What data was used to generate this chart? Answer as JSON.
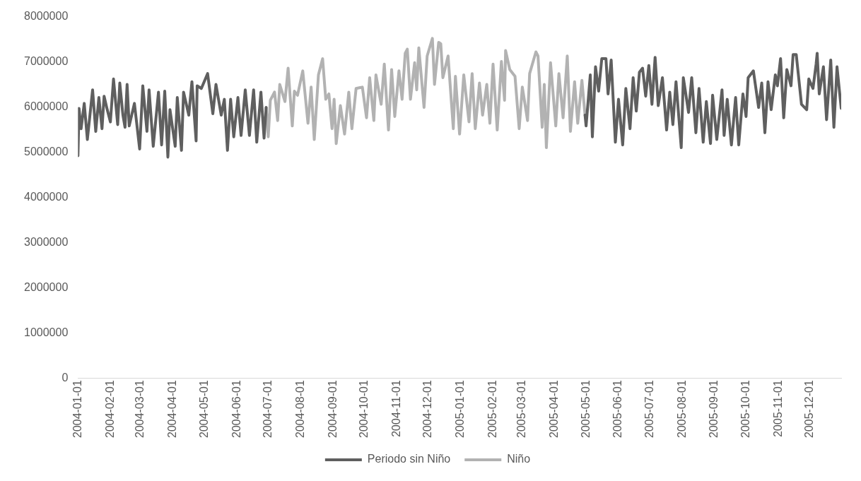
{
  "chart_data": {
    "type": "line",
    "legend": "bottom",
    "grid": false,
    "marker": "none",
    "line_style": "solid",
    "xlim": [
      "2004-01-01",
      "2005-12-31"
    ],
    "xticks": [
      "2004-01-01",
      "2004-02-01",
      "2004-03-01",
      "2004-04-01",
      "2004-05-01",
      "2004-06-01",
      "2004-07-01",
      "2004-08-01",
      "2004-09-01",
      "2004-10-01",
      "2004-11-01",
      "2004-12-01",
      "2005-01-01",
      "2005-02-01",
      "2005-03-01",
      "2005-04-01",
      "2005-05-01",
      "2005-06-01",
      "2005-07-01",
      "2005-08-01",
      "2005-09-01",
      "2005-10-01",
      "2005-11-01",
      "2005-12-01"
    ],
    "ylim": [
      0,
      8000000
    ],
    "yticks": [
      0,
      1000000,
      2000000,
      3000000,
      4000000,
      5000000,
      6000000,
      7000000,
      8000000
    ],
    "series": [
      {
        "name": "Periodo sin Niño",
        "color": "#5f5f5f",
        "x": [
          "2004-01-01",
          "2004-01-02",
          "2004-01-04",
          "2004-01-07",
          "2004-01-10",
          "2004-01-15",
          "2004-01-18",
          "2004-01-21",
          "2004-01-24",
          "2004-01-26",
          "2004-01-29",
          "2004-02-01",
          "2004-02-04",
          "2004-02-08",
          "2004-02-10",
          "2004-02-13",
          "2004-02-15",
          "2004-02-17",
          "2004-02-19",
          "2004-02-24",
          "2004-02-29",
          "2004-03-03",
          "2004-03-07",
          "2004-03-09",
          "2004-03-13",
          "2004-03-18",
          "2004-03-21",
          "2004-03-24",
          "2004-03-27",
          "2004-03-29",
          "2004-04-03",
          "2004-04-05",
          "2004-04-09",
          "2004-04-11",
          "2004-04-16",
          "2004-04-19",
          "2004-04-23",
          "2004-04-24",
          "2004-04-28",
          "2004-05-04",
          "2004-05-09",
          "2004-05-12",
          "2004-05-17",
          "2004-05-20",
          "2004-05-23",
          "2004-05-26",
          "2004-05-29",
          "2004-06-02",
          "2004-06-05",
          "2004-06-09",
          "2004-06-13",
          "2004-06-17",
          "2004-06-20",
          "2004-06-24",
          "2004-06-27",
          "2004-06-29",
          "2004-12-01",
          "2005-04-30",
          "2005-05-01",
          "2005-05-05",
          "2005-05-07",
          "2005-05-10",
          "2005-05-13",
          "2005-05-16",
          "2005-05-20",
          "2005-05-22",
          "2005-05-25",
          "2005-05-29",
          "2005-06-01",
          "2005-06-05",
          "2005-06-08",
          "2005-06-12",
          "2005-06-15",
          "2005-06-18",
          "2005-06-21",
          "2005-06-24",
          "2005-06-27",
          "2005-06-30",
          "2005-07-03",
          "2005-07-06",
          "2005-07-09",
          "2005-07-13",
          "2005-07-17",
          "2005-07-20",
          "2005-07-23",
          "2005-07-26",
          "2005-07-31",
          "2005-08-02",
          "2005-08-07",
          "2005-08-10",
          "2005-08-14",
          "2005-08-17",
          "2005-08-21",
          "2005-08-24",
          "2005-08-28",
          "2005-08-30",
          "2005-09-03",
          "2005-09-08",
          "2005-09-10",
          "2005-09-13",
          "2005-09-17",
          "2005-09-21",
          "2005-09-24",
          "2005-09-28",
          "2005-10-01",
          "2005-10-03",
          "2005-10-08",
          "2005-10-13",
          "2005-10-16",
          "2005-10-19",
          "2005-10-22",
          "2005-10-25",
          "2005-10-29",
          "2005-10-31",
          "2005-11-03",
          "2005-11-06",
          "2005-11-09",
          "2005-11-13",
          "2005-11-15",
          "2005-11-18",
          "2005-11-23",
          "2005-11-28",
          "2005-11-30",
          "2005-12-04",
          "2005-12-07",
          "2005-12-08",
          "2005-12-10",
          "2005-12-14",
          "2005-12-17",
          "2005-12-21",
          "2005-12-24",
          "2005-12-27",
          "2005-12-31"
        ],
        "values": [
          4920000,
          5970000,
          5520000,
          6080000,
          5280000,
          6380000,
          5460000,
          6210000,
          5520000,
          6240000,
          5940000,
          5670000,
          6620000,
          5610000,
          6530000,
          5820000,
          5550000,
          6500000,
          5580000,
          6080000,
          5070000,
          6470000,
          5460000,
          6380000,
          5130000,
          6330000,
          5160000,
          6350000,
          4890000,
          5940000,
          5130000,
          6210000,
          5040000,
          6330000,
          5820000,
          6560000,
          5250000,
          6470000,
          6410000,
          6740000,
          5850000,
          6500000,
          5820000,
          6170000,
          5040000,
          6170000,
          5340000,
          6210000,
          5370000,
          6380000,
          5370000,
          6380000,
          5220000,
          6330000,
          5310000,
          5990000,
          null,
          5820000,
          5580000,
          6710000,
          5340000,
          6890000,
          6350000,
          7070000,
          7070000,
          6290000,
          7040000,
          5220000,
          6170000,
          5160000,
          6410000,
          5520000,
          6650000,
          5910000,
          6770000,
          6860000,
          6240000,
          6920000,
          6060000,
          7100000,
          6030000,
          6650000,
          5490000,
          6330000,
          5610000,
          6560000,
          5100000,
          6650000,
          5880000,
          6650000,
          5430000,
          6410000,
          5220000,
          6120000,
          5190000,
          6260000,
          5280000,
          6380000,
          5370000,
          6170000,
          5160000,
          6210000,
          5160000,
          6290000,
          5790000,
          6650000,
          6800000,
          5990000,
          6530000,
          5430000,
          6560000,
          5940000,
          6710000,
          6470000,
          7070000,
          5760000,
          6830000,
          6470000,
          7160000,
          7160000,
          6060000,
          5940000,
          6620000,
          6410000,
          6950000,
          7190000,
          6290000,
          6890000,
          5720000,
          7040000,
          5550000,
          6890000,
          5970000
        ]
      },
      {
        "name": "Niño",
        "color": "#b2b2b2",
        "x": [
          "2004-06-29",
          "2004-07-01",
          "2004-07-03",
          "2004-07-07",
          "2004-07-10",
          "2004-07-12",
          "2004-07-17",
          "2004-07-20",
          "2004-07-24",
          "2004-07-26",
          "2004-07-29",
          "2004-08-03",
          "2004-08-08",
          "2004-08-11",
          "2004-08-14",
          "2004-08-18",
          "2004-08-22",
          "2004-08-25",
          "2004-08-28",
          "2004-08-31",
          "2004-09-02",
          "2004-09-04",
          "2004-09-08",
          "2004-09-12",
          "2004-09-16",
          "2004-09-19",
          "2004-09-23",
          "2004-09-29",
          "2004-10-03",
          "2004-10-06",
          "2004-10-10",
          "2004-10-12",
          "2004-10-17",
          "2004-10-20",
          "2004-10-24",
          "2004-10-27",
          "2004-10-30",
          "2004-11-03",
          "2004-11-06",
          "2004-11-09",
          "2004-11-11",
          "2004-11-14",
          "2004-11-18",
          "2004-11-20",
          "2004-11-22",
          "2004-11-27",
          "2004-11-30",
          "2004-12-05",
          "2004-12-07",
          "2004-12-11",
          "2004-12-13",
          "2004-12-15",
          "2004-12-20",
          "2004-12-25",
          "2004-12-27",
          "2004-12-31",
          "2005-01-04",
          "2005-01-09",
          "2005-01-12",
          "2005-01-15",
          "2005-01-19",
          "2005-01-22",
          "2005-01-26",
          "2005-01-29",
          "2005-02-01",
          "2005-02-05",
          "2005-02-09",
          "2005-02-12",
          "2005-02-13",
          "2005-02-17",
          "2005-02-22",
          "2005-02-26",
          "2005-03-01",
          "2005-03-06",
          "2005-03-08",
          "2005-03-14",
          "2005-03-16",
          "2005-03-20",
          "2005-03-22",
          "2005-03-24",
          "2005-03-28",
          "2005-04-02",
          "2005-04-05",
          "2005-04-09",
          "2005-04-13",
          "2005-04-16",
          "2005-04-20",
          "2005-04-23",
          "2005-04-27",
          "2005-04-30"
        ],
        "values": [
          5990000,
          5340000,
          6150000,
          6330000,
          5700000,
          6500000,
          6120000,
          6860000,
          5580000,
          6350000,
          6260000,
          6800000,
          5640000,
          6440000,
          5280000,
          6710000,
          7070000,
          6170000,
          6290000,
          5520000,
          6170000,
          5190000,
          6030000,
          5400000,
          6330000,
          5520000,
          6410000,
          6440000,
          5760000,
          6650000,
          5700000,
          6710000,
          6060000,
          6950000,
          5490000,
          6830000,
          5790000,
          6800000,
          6170000,
          7190000,
          7280000,
          6170000,
          6980000,
          6380000,
          7310000,
          5990000,
          7130000,
          7520000,
          6500000,
          7430000,
          7400000,
          6650000,
          7130000,
          5520000,
          6680000,
          5400000,
          6710000,
          5670000,
          6740000,
          5520000,
          6530000,
          5820000,
          6500000,
          5640000,
          6950000,
          5490000,
          7010000,
          6150000,
          7250000,
          6830000,
          6680000,
          5520000,
          6440000,
          5700000,
          6740000,
          7220000,
          7130000,
          5550000,
          6500000,
          5100000,
          6980000,
          5580000,
          6740000,
          5760000,
          7130000,
          5460000,
          6560000,
          5640000,
          6590000,
          5820000
        ]
      }
    ]
  }
}
